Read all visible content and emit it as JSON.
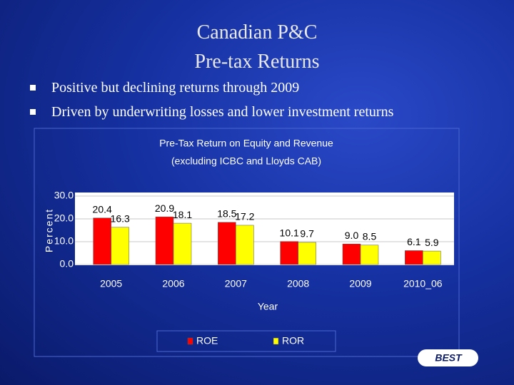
{
  "slide": {
    "title": [
      "Canadian P&C",
      "Pre-tax Returns"
    ],
    "bullets": [
      "Positive but declining returns through 2009",
      "Driven by underwriting losses and lower investment returns"
    ],
    "logo": "BEST"
  },
  "chart_data": {
    "type": "bar",
    "title": "Pre-Tax Return on Equity and Revenue",
    "subtitle": "(excluding ICBC and Lloyds CAB)",
    "y_label": "Percent",
    "x_label": "Year",
    "categories": [
      "2005",
      "2006",
      "2007",
      "2008",
      "2009",
      "2010_06"
    ],
    "series": [
      {
        "name": "ROE",
        "color": "#ff0000",
        "values": [
          20.4,
          20.9,
          18.5,
          10.1,
          9,
          6.1
        ],
        "value_labels": [
          "20.4",
          "20.9",
          "18.5",
          "10.1",
          "9.0",
          "6.1"
        ]
      },
      {
        "name": "ROR",
        "color": "#ffff00",
        "values": [
          16.3,
          18.1,
          17.2,
          9.7,
          8.5,
          5.9
        ]
      }
    ],
    "ylim": [
      0,
      30
    ],
    "yticks": [
      {
        "value": 0,
        "label": "0.0"
      },
      {
        "value": 10,
        "label": "10.0"
      },
      {
        "value": 20,
        "label": "20.0"
      },
      {
        "value": 30,
        "label": "30.0"
      }
    ],
    "grid": true,
    "legend": "bottom"
  }
}
